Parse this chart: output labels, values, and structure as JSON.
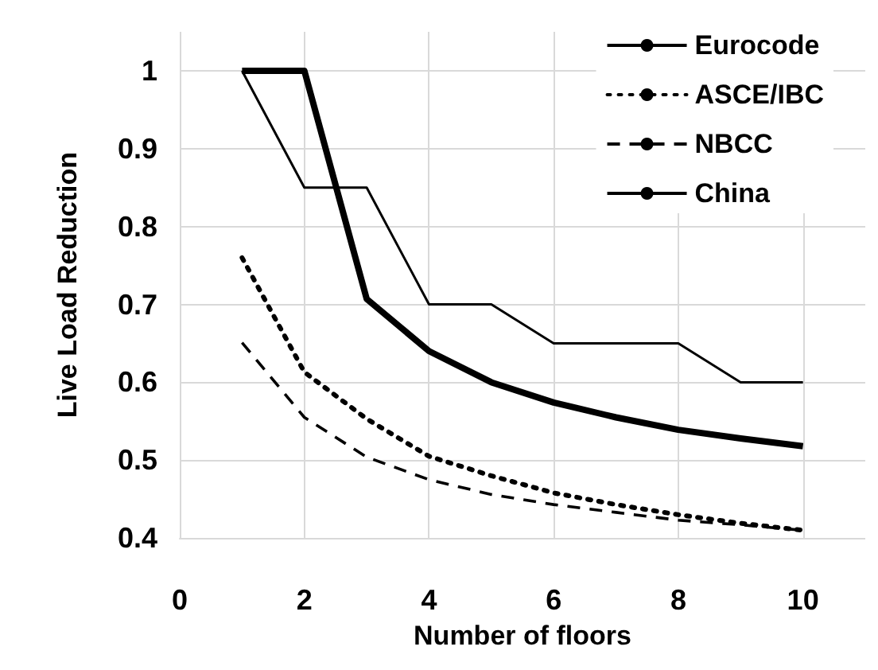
{
  "chart_data": {
    "type": "line",
    "xlabel": "Number of floors",
    "ylabel": "Live Load Reduction",
    "x": [
      1,
      2,
      3,
      4,
      5,
      6,
      7,
      8,
      9,
      10
    ],
    "series": [
      {
        "name": "Eurocode",
        "color": "#000000",
        "line_style": "solid",
        "values": [
          1,
          1,
          0.707,
          0.64,
          0.6,
          0.574,
          0.555,
          0.539,
          0.528,
          0.518
        ]
      },
      {
        "name": "ASCE/IBC",
        "color": "#000000",
        "line_style": "dotted",
        "values": [
          0.76,
          0.613,
          0.553,
          0.505,
          0.48,
          0.458,
          0.443,
          0.43,
          0.419,
          0.41
        ]
      },
      {
        "name": "NBCC",
        "color": "#000000",
        "line_style": "dashed",
        "values": [
          0.651,
          0.555,
          0.504,
          0.475,
          0.456,
          0.443,
          0.433,
          0.423,
          0.417,
          0.41
        ]
      },
      {
        "name": "China",
        "color": "#000000",
        "line_style": "solid",
        "values": [
          1,
          0.85,
          0.85,
          0.7,
          0.7,
          0.65,
          0.65,
          0.65,
          0.6,
          0.6
        ]
      }
    ],
    "xlim": [
      0,
      11
    ],
    "xticks": [
      0,
      2,
      4,
      6,
      8,
      10
    ],
    "ylim": [
      0.4,
      1.05
    ],
    "yticks": [
      0.4,
      0.5,
      0.6,
      0.7,
      0.8,
      0.9,
      1
    ],
    "grid": true,
    "legend": "top right",
    "marker": "none"
  }
}
